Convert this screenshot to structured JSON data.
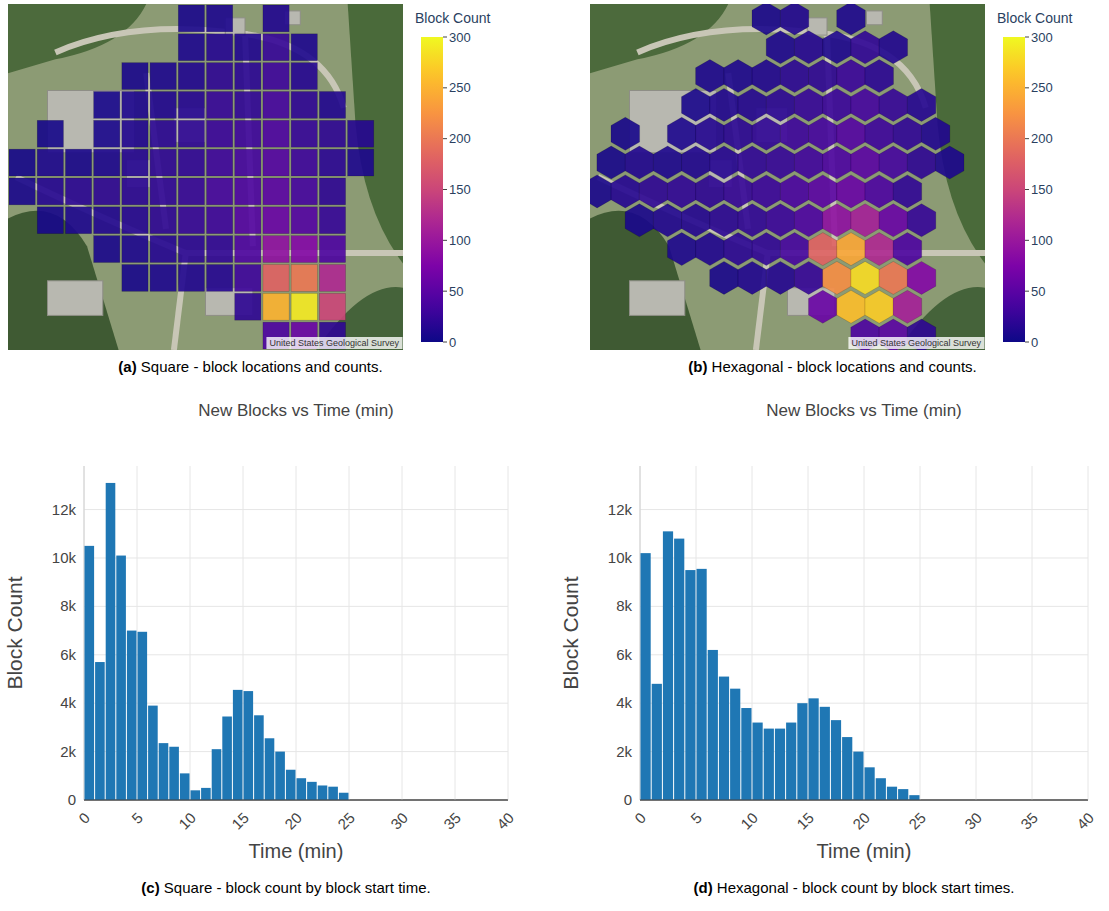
{
  "chart_data": [
    {
      "type": "heatmap",
      "cells": [
        [
          null,
          null,
          null,
          null,
          null,
          null,
          8,
          10,
          null,
          12,
          null,
          null,
          null,
          null
        ],
        [
          null,
          null,
          null,
          null,
          null,
          null,
          10,
          15,
          12,
          25,
          10,
          null,
          null,
          null
        ],
        [
          null,
          null,
          null,
          null,
          8,
          10,
          12,
          20,
          18,
          30,
          15,
          null,
          null,
          null
        ],
        [
          null,
          null,
          null,
          6,
          10,
          12,
          15,
          25,
          22,
          35,
          20,
          12,
          null,
          null
        ],
        [
          null,
          5,
          null,
          8,
          12,
          18,
          20,
          28,
          30,
          40,
          25,
          20,
          15,
          null
        ],
        [
          5,
          10,
          8,
          10,
          15,
          20,
          22,
          30,
          35,
          45,
          30,
          18,
          10,
          null
        ],
        [
          8,
          15,
          18,
          20,
          18,
          22,
          25,
          35,
          40,
          50,
          35,
          20,
          null,
          null
        ],
        [
          null,
          6,
          10,
          12,
          15,
          20,
          25,
          30,
          45,
          60,
          45,
          25,
          null,
          null
        ],
        [
          null,
          null,
          null,
          8,
          10,
          15,
          18,
          22,
          40,
          90,
          80,
          40,
          null,
          null
        ],
        [
          null,
          null,
          null,
          null,
          6,
          10,
          12,
          15,
          30,
          180,
          200,
          120,
          null,
          null
        ],
        [
          null,
          null,
          null,
          null,
          null,
          null,
          null,
          null,
          20,
          250,
          290,
          150,
          null,
          null
        ],
        [
          null,
          null,
          null,
          null,
          null,
          null,
          null,
          null,
          null,
          40,
          60,
          20,
          null,
          null
        ]
      ],
      "colorbar": {
        "title": "Block Count",
        "range": [
          0,
          300
        ],
        "ticks": [
          0,
          50,
          100,
          150,
          200,
          250,
          300
        ]
      },
      "attribution": "United States Geological Survey",
      "caption": {
        "label": "(a)",
        "text": "Square - block locations and counts."
      }
    },
    {
      "type": "hexbin",
      "cells": [
        [
          null,
          null,
          null,
          null,
          null,
          null,
          8,
          12,
          null,
          10,
          null,
          null,
          null,
          null
        ],
        [
          null,
          null,
          null,
          null,
          null,
          null,
          10,
          15,
          10,
          22,
          12,
          null,
          null,
          null
        ],
        [
          null,
          null,
          null,
          null,
          10,
          10,
          12,
          18,
          20,
          28,
          18,
          null,
          null,
          null
        ],
        [
          null,
          null,
          null,
          8,
          12,
          14,
          18,
          25,
          28,
          35,
          25,
          15,
          null,
          null
        ],
        [
          null,
          6,
          null,
          10,
          14,
          18,
          22,
          30,
          35,
          45,
          30,
          22,
          12,
          null
        ],
        [
          6,
          12,
          10,
          12,
          16,
          22,
          25,
          32,
          40,
          50,
          35,
          20,
          10,
          null
        ],
        [
          8,
          15,
          20,
          22,
          20,
          25,
          28,
          38,
          50,
          60,
          40,
          22,
          null,
          null
        ],
        [
          null,
          8,
          12,
          14,
          18,
          22,
          28,
          40,
          90,
          110,
          60,
          25,
          null,
          null
        ],
        [
          null,
          null,
          null,
          10,
          12,
          18,
          22,
          35,
          180,
          240,
          120,
          40,
          null,
          null
        ],
        [
          null,
          null,
          null,
          null,
          8,
          12,
          14,
          25,
          220,
          280,
          200,
          80,
          null,
          null
        ],
        [
          null,
          null,
          null,
          null,
          null,
          null,
          null,
          null,
          60,
          260,
          270,
          110,
          null,
          null
        ],
        [
          null,
          null,
          null,
          null,
          null,
          null,
          null,
          null,
          null,
          40,
          50,
          20,
          null,
          null
        ]
      ],
      "colorbar": {
        "title": "Block Count",
        "range": [
          0,
          300
        ],
        "ticks": [
          0,
          50,
          100,
          150,
          200,
          250,
          300
        ]
      },
      "attribution": "United States Geological Survey",
      "caption": {
        "label": "(b)",
        "text": "Hexagonal - block locations and counts."
      }
    },
    {
      "type": "histogram",
      "title": "New Blocks vs Time (min)",
      "x_label": "Time (min)",
      "y_label": "Block Count",
      "bins": [
        0,
        1,
        2,
        3,
        4,
        5,
        6,
        7,
        8,
        9,
        10,
        11,
        12,
        13,
        14,
        15,
        16,
        17,
        18,
        19,
        20,
        21,
        22,
        23,
        24,
        25
      ],
      "values": [
        10500,
        5700,
        13100,
        10100,
        7000,
        6950,
        3900,
        2350,
        2200,
        1100,
        400,
        500,
        2100,
        3450,
        4550,
        4500,
        3500,
        2550,
        2000,
        1250,
        900,
        750,
        600,
        550,
        300
      ],
      "color": "#1f77b4",
      "xlim": [
        0,
        40
      ],
      "xticks": [
        0,
        5,
        10,
        15,
        20,
        25,
        30,
        35,
        40
      ],
      "ylim": [
        0,
        13800
      ],
      "yticks": [
        0,
        {
          "value": 2000,
          "label": "2k"
        },
        {
          "value": 4000,
          "label": "4k"
        },
        {
          "value": 6000,
          "label": "6k"
        },
        {
          "value": 8000,
          "label": "8k"
        },
        {
          "value": 10000,
          "label": "10k"
        },
        {
          "value": 12000,
          "label": "12k"
        }
      ],
      "grid": true,
      "caption": {
        "label": "(c)",
        "text": "Square - block count by block start time."
      }
    },
    {
      "type": "histogram",
      "title": "New Blocks vs Time (min)",
      "x_label": "Time (min)",
      "y_label": "Block Count",
      "bins": [
        0,
        1,
        2,
        3,
        4,
        5,
        6,
        7,
        8,
        9,
        10,
        11,
        12,
        13,
        14,
        15,
        16,
        17,
        18,
        19,
        20,
        21,
        22,
        23,
        24,
        25
      ],
      "values": [
        10200,
        4800,
        11100,
        10800,
        9500,
        9550,
        6200,
        5100,
        4600,
        3800,
        3200,
        2950,
        2950,
        3200,
        4000,
        4200,
        3850,
        3300,
        2600,
        2000,
        1350,
        900,
        550,
        450,
        200
      ],
      "color": "#1f77b4",
      "xlim": [
        0,
        40
      ],
      "xticks": [
        0,
        5,
        10,
        15,
        20,
        25,
        30,
        35,
        40
      ],
      "ylim": [
        0,
        13800
      ],
      "yticks": [
        0,
        {
          "value": 2000,
          "label": "2k"
        },
        {
          "value": 4000,
          "label": "4k"
        },
        {
          "value": 6000,
          "label": "6k"
        },
        {
          "value": 8000,
          "label": "8k"
        },
        {
          "value": 10000,
          "label": "10k"
        },
        {
          "value": 12000,
          "label": "12k"
        }
      ],
      "grid": true,
      "caption": {
        "label": "(d)",
        "text": "Hexagonal - block count by block start times."
      }
    }
  ]
}
